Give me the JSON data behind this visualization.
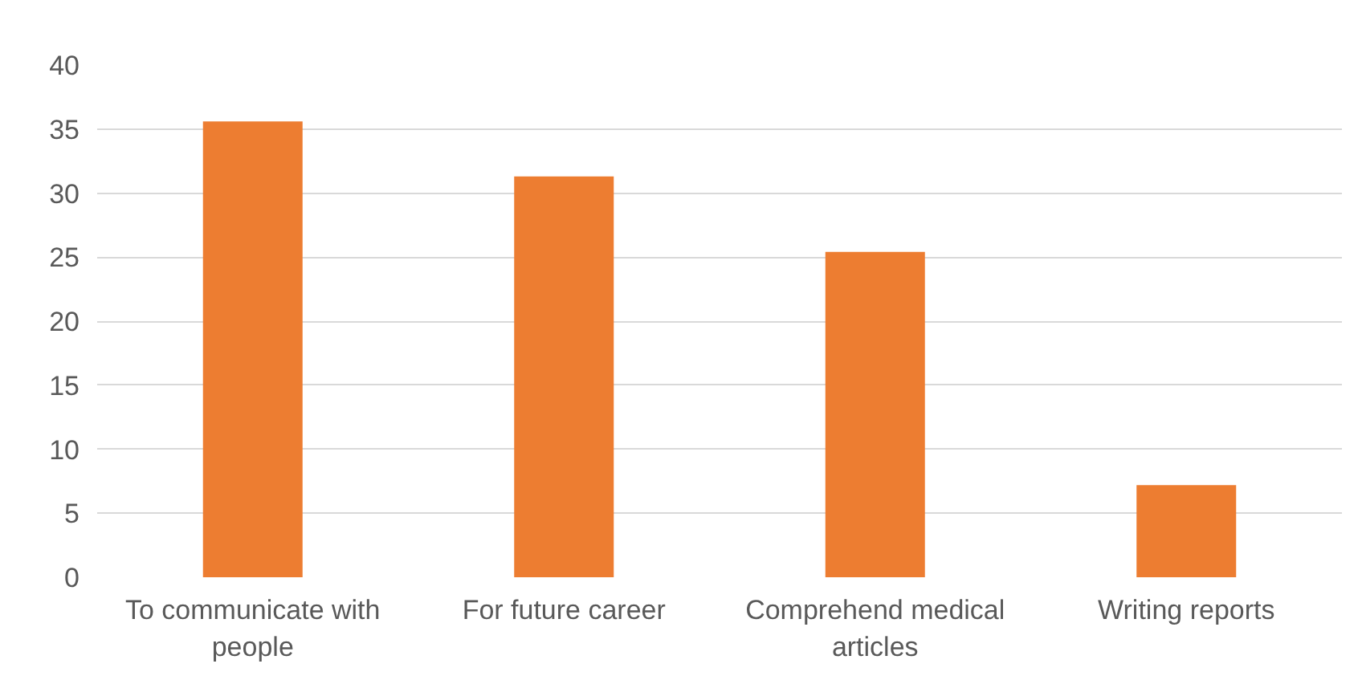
{
  "chart_data": {
    "type": "bar",
    "categories": [
      "To communicate with people",
      "For future career",
      "Comprehend medical articles",
      "Writing reports"
    ],
    "values": [
      35.6,
      31.3,
      25.4,
      7.2
    ],
    "color": "#ed7d31",
    "ylim": [
      0,
      40
    ],
    "yticks": [
      0,
      5,
      10,
      15,
      20,
      25,
      30,
      35,
      40
    ],
    "grid": "y"
  }
}
